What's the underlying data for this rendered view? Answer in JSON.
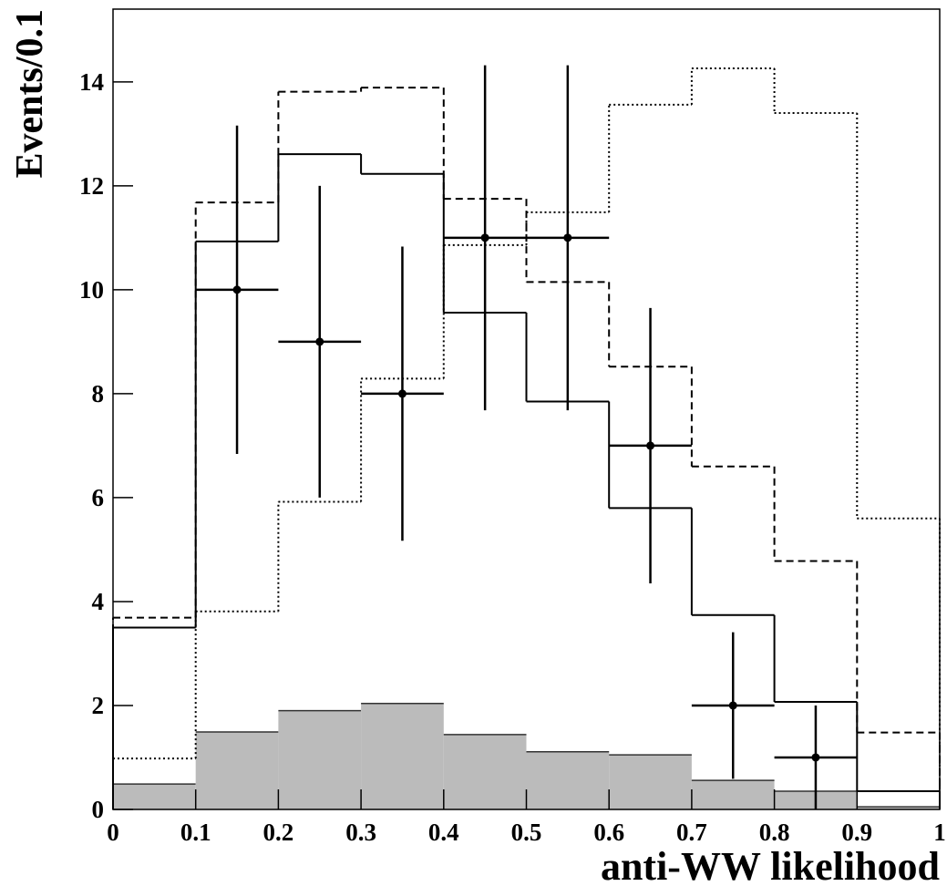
{
  "chart_data": {
    "type": "histogram",
    "ylabel": "Events/0.1",
    "xlabel": "anti-WW likelihood",
    "bins": [
      0,
      0.1,
      0.2,
      0.3,
      0.4,
      0.5,
      0.6,
      0.7,
      0.8,
      0.9,
      1
    ],
    "xlim": [
      0,
      1
    ],
    "ylim": [
      0,
      15.4
    ],
    "xticks": [
      0,
      0.1,
      0.2,
      0.3,
      0.4,
      0.5,
      0.6,
      0.7,
      0.8,
      0.9,
      1
    ],
    "yticks": [
      0,
      2,
      4,
      6,
      8,
      10,
      12,
      14
    ],
    "series": [
      {
        "style": "filled",
        "color": "#bbbbbb",
        "values": [
          0.49,
          1.49,
          1.9,
          2.04,
          1.44,
          1.11,
          1.05,
          0.56,
          0.35,
          0.05
        ]
      },
      {
        "style": "dotted",
        "color": "#000000",
        "values": [
          0.98,
          3.81,
          5.92,
          8.29,
          10.86,
          11.49,
          13.56,
          14.26,
          13.4,
          5.6
        ]
      },
      {
        "style": "dashed",
        "color": "#000000",
        "values": [
          3.69,
          11.68,
          13.81,
          13.89,
          11.75,
          10.15,
          8.52,
          6.6,
          4.78,
          1.48
        ]
      },
      {
        "style": "solid",
        "color": "#000000",
        "values": [
          3.5,
          10.93,
          12.61,
          12.23,
          9.56,
          7.85,
          5.8,
          3.74,
          2.07,
          0.35
        ]
      }
    ],
    "points": {
      "color": "#000000",
      "x": [
        0.15,
        0.25,
        0.35,
        0.45,
        0.55,
        0.65,
        0.75,
        0.85
      ],
      "values": [
        10,
        9,
        8,
        11,
        11,
        7,
        2,
        1
      ],
      "yerr": [
        3.16,
        3,
        2.83,
        3.32,
        3.32,
        2.65,
        1.41,
        1
      ],
      "xerr": 0.05
    }
  }
}
